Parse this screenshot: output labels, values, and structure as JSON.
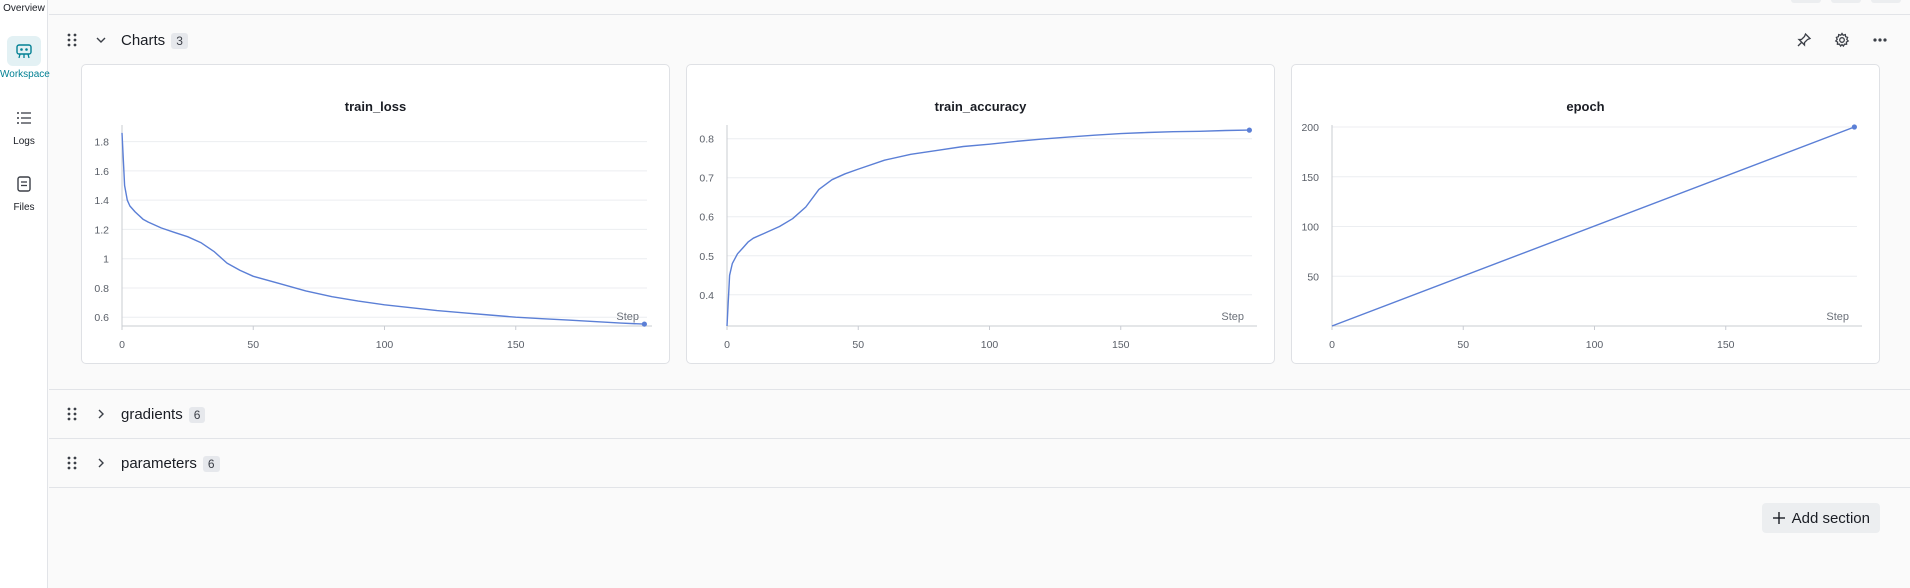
{
  "nav": {
    "overview_label": "Overview",
    "items": [
      {
        "label": "Workspace",
        "icon": "workspace-icon",
        "active": true
      },
      {
        "label": "Logs",
        "icon": "list-icon",
        "active": false
      },
      {
        "label": "Files",
        "icon": "file-icon",
        "active": false
      }
    ]
  },
  "sections": [
    {
      "title": "Charts",
      "count": "3",
      "expanded": true
    },
    {
      "title": "gradients",
      "count": "6",
      "expanded": false
    },
    {
      "title": "parameters",
      "count": "6",
      "expanded": false
    }
  ],
  "section_actions": [
    "pin-icon",
    "gear-icon",
    "more-icon"
  ],
  "add_section_label": "Add section",
  "colors": {
    "accent": "#038194",
    "line": "#5b7fd6"
  },
  "chart_data": [
    {
      "type": "line",
      "title": "train_loss",
      "xlabel": "Step",
      "xlim": [
        0,
        200
      ],
      "ylim": [
        0.54,
        1.9
      ],
      "x_ticks": [
        0,
        50,
        100,
        150
      ],
      "x_tick_labels": [
        "0",
        "50",
        "100",
        "150"
      ],
      "y_ticks": [
        0.6,
        0.8,
        1.0,
        1.2,
        1.4,
        1.6,
        1.8
      ],
      "y_tick_labels": [
        "0.6",
        "0.8",
        "1",
        "1.2",
        "1.4",
        "1.6",
        "1.8"
      ],
      "grid": true,
      "x": [
        0,
        1,
        2,
        3,
        5,
        8,
        10,
        15,
        20,
        25,
        30,
        35,
        40,
        45,
        50,
        60,
        70,
        80,
        90,
        100,
        110,
        120,
        130,
        140,
        150,
        160,
        170,
        180,
        190,
        199
      ],
      "y": [
        1.86,
        1.5,
        1.4,
        1.36,
        1.32,
        1.27,
        1.25,
        1.21,
        1.18,
        1.15,
        1.11,
        1.05,
        0.97,
        0.92,
        0.88,
        0.83,
        0.78,
        0.74,
        0.71,
        0.685,
        0.665,
        0.645,
        0.63,
        0.615,
        0.6,
        0.59,
        0.58,
        0.57,
        0.56,
        0.553
      ]
    },
    {
      "type": "line",
      "title": "train_accuracy",
      "xlabel": "Step",
      "xlim": [
        0,
        200
      ],
      "ylim": [
        0.32,
        0.83
      ],
      "x_ticks": [
        0,
        50,
        100,
        150
      ],
      "x_tick_labels": [
        "0",
        "50",
        "100",
        "150"
      ],
      "y_ticks": [
        0.4,
        0.5,
        0.6,
        0.7,
        0.8
      ],
      "y_tick_labels": [
        "0.4",
        "0.5",
        "0.6",
        "0.7",
        "0.8"
      ],
      "grid": true,
      "x": [
        0,
        1,
        2,
        4,
        6,
        8,
        10,
        15,
        20,
        25,
        30,
        35,
        40,
        45,
        50,
        60,
        70,
        80,
        90,
        100,
        110,
        120,
        130,
        140,
        150,
        160,
        170,
        180,
        190,
        199
      ],
      "y": [
        0.32,
        0.45,
        0.48,
        0.505,
        0.52,
        0.535,
        0.545,
        0.56,
        0.575,
        0.595,
        0.625,
        0.67,
        0.695,
        0.71,
        0.722,
        0.745,
        0.76,
        0.77,
        0.78,
        0.786,
        0.793,
        0.799,
        0.804,
        0.809,
        0.813,
        0.816,
        0.818,
        0.819,
        0.821,
        0.822
      ]
    },
    {
      "type": "line",
      "title": "epoch",
      "xlabel": "Step",
      "xlim": [
        0,
        200
      ],
      "ylim": [
        0,
        200
      ],
      "x_ticks": [
        0,
        50,
        100,
        150
      ],
      "x_tick_labels": [
        "0",
        "50",
        "100",
        "150"
      ],
      "y_ticks": [
        50,
        100,
        150,
        200
      ],
      "y_tick_labels": [
        "50",
        "100",
        "150",
        "200"
      ],
      "grid": true,
      "x": [
        0,
        199
      ],
      "y": [
        0,
        200
      ]
    }
  ]
}
